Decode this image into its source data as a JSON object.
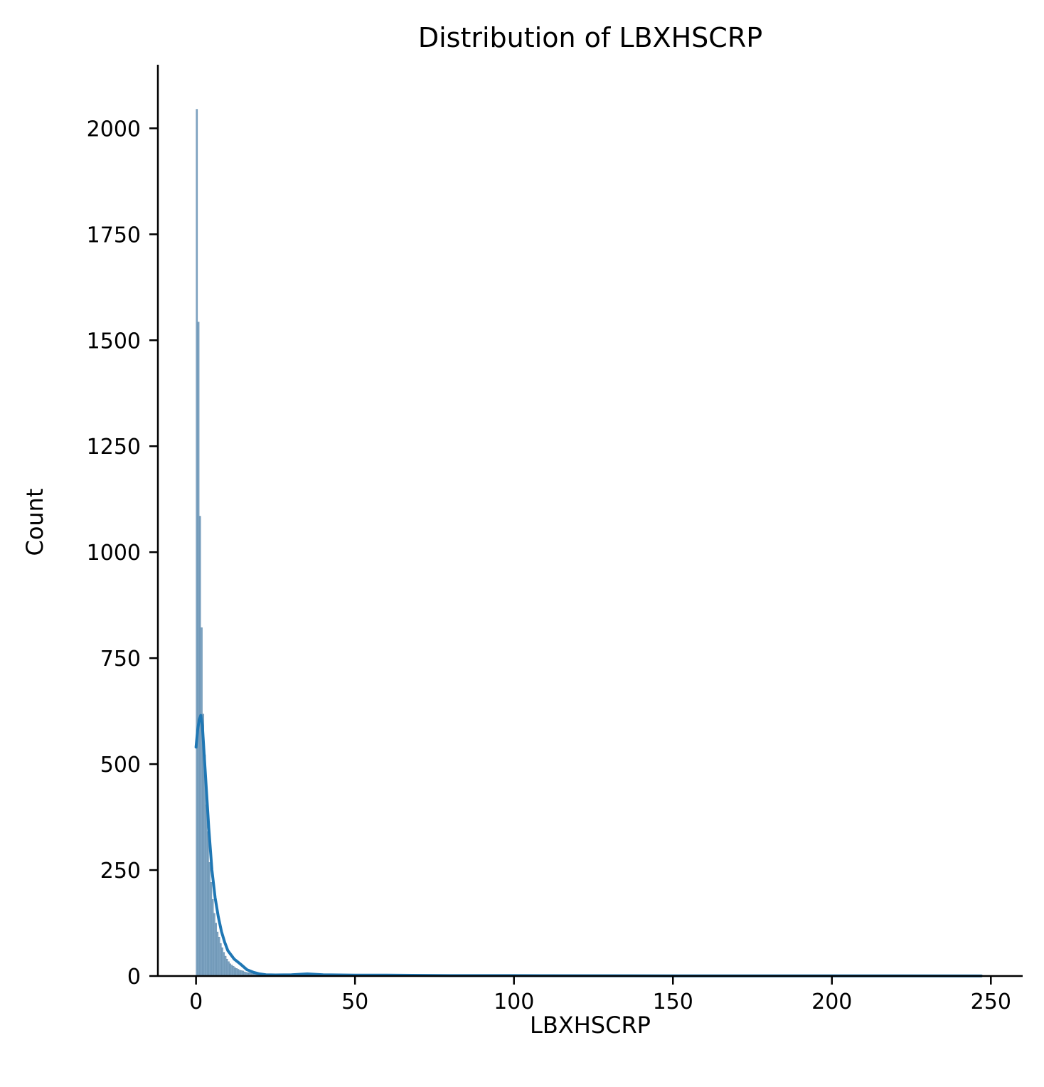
{
  "chart_data": {
    "type": "bar",
    "title": "Distribution of LBXHSCRP",
    "xlabel": "LBXHSCRP",
    "ylabel": "Count",
    "xlim": [
      -12,
      260
    ],
    "ylim": [
      0,
      2150
    ],
    "x_ticks": [
      0,
      50,
      100,
      150,
      200,
      250
    ],
    "y_ticks": [
      0,
      250,
      500,
      750,
      1000,
      1250,
      1500,
      1750,
      2000
    ],
    "grid": false,
    "legend": "none",
    "bin_width": 0.5,
    "bin_starts": [
      0.0,
      0.5,
      1.0,
      1.5,
      2.0,
      2.5,
      3.0,
      3.5,
      4.0,
      4.5,
      5.0,
      5.5,
      6.0,
      6.5,
      7.0,
      7.5,
      8.0,
      8.5,
      9.0,
      9.5,
      10.0,
      10.5,
      11.0,
      11.5,
      12.0,
      12.5,
      13.0,
      13.5,
      14.0,
      14.5,
      15.0,
      15.5,
      16.0,
      16.5,
      17.0,
      17.5,
      18.0,
      18.5,
      19.0,
      19.5
    ],
    "counts": [
      2045,
      1543,
      1085,
      822,
      618,
      522,
      404,
      341,
      268,
      221,
      181,
      148,
      125,
      104,
      92,
      77,
      67,
      56,
      47,
      40,
      34,
      29,
      26,
      23,
      20,
      18,
      16,
      14,
      13,
      12,
      10,
      9,
      8,
      8,
      7,
      6,
      6,
      5,
      5,
      4
    ],
    "kde": {
      "x": [
        0,
        0.5,
        1,
        1.5,
        2,
        3,
        4,
        5,
        6,
        7,
        8,
        9,
        10,
        12,
        14,
        16,
        18,
        20,
        22,
        25,
        30,
        35,
        40,
        50,
        60,
        80,
        100,
        150,
        200,
        247
      ],
      "y": [
        540,
        580,
        605,
        615,
        590,
        470,
        350,
        250,
        185,
        140,
        105,
        80,
        60,
        40,
        28,
        15,
        9,
        5,
        3,
        2.5,
        3,
        5,
        3,
        2,
        2,
        1,
        1,
        0.5,
        0.5,
        0.2
      ]
    },
    "colors": {
      "bar_fill": "#7ea4c2",
      "bar_edge": "#5d87a8",
      "kde_line": "#1f77b4",
      "axis": "#000000"
    }
  }
}
